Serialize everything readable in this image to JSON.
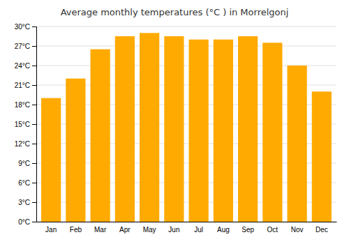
{
  "chart_data": {
    "type": "bar",
    "title": "Average monthly temperatures (°C ) in Morrelgonj",
    "categories": [
      "Jan",
      "Feb",
      "Mar",
      "Apr",
      "May",
      "Jun",
      "Jul",
      "Aug",
      "Sep",
      "Oct",
      "Nov",
      "Dec"
    ],
    "values": [
      19.0,
      22.0,
      26.5,
      28.5,
      29.0,
      28.5,
      28.0,
      28.0,
      28.5,
      27.5,
      24.0,
      20.0
    ],
    "color": "#FFAA00",
    "ylim": [
      0,
      30
    ],
    "yticks": [
      {
        "value": 0,
        "label": "0°C"
      },
      {
        "value": 3,
        "label": "3°C"
      },
      {
        "value": 6,
        "label": "6°C"
      },
      {
        "value": 9,
        "label": "9°C"
      },
      {
        "value": 12,
        "label": "12°C"
      },
      {
        "value": 15,
        "label": "15°C"
      },
      {
        "value": 18,
        "label": "18°C"
      },
      {
        "value": 21,
        "label": "21°C"
      },
      {
        "value": 24,
        "label": "24°C"
      },
      {
        "value": 27,
        "label": "27°C"
      },
      {
        "value": 30,
        "label": "30°C"
      }
    ],
    "grid": true
  }
}
